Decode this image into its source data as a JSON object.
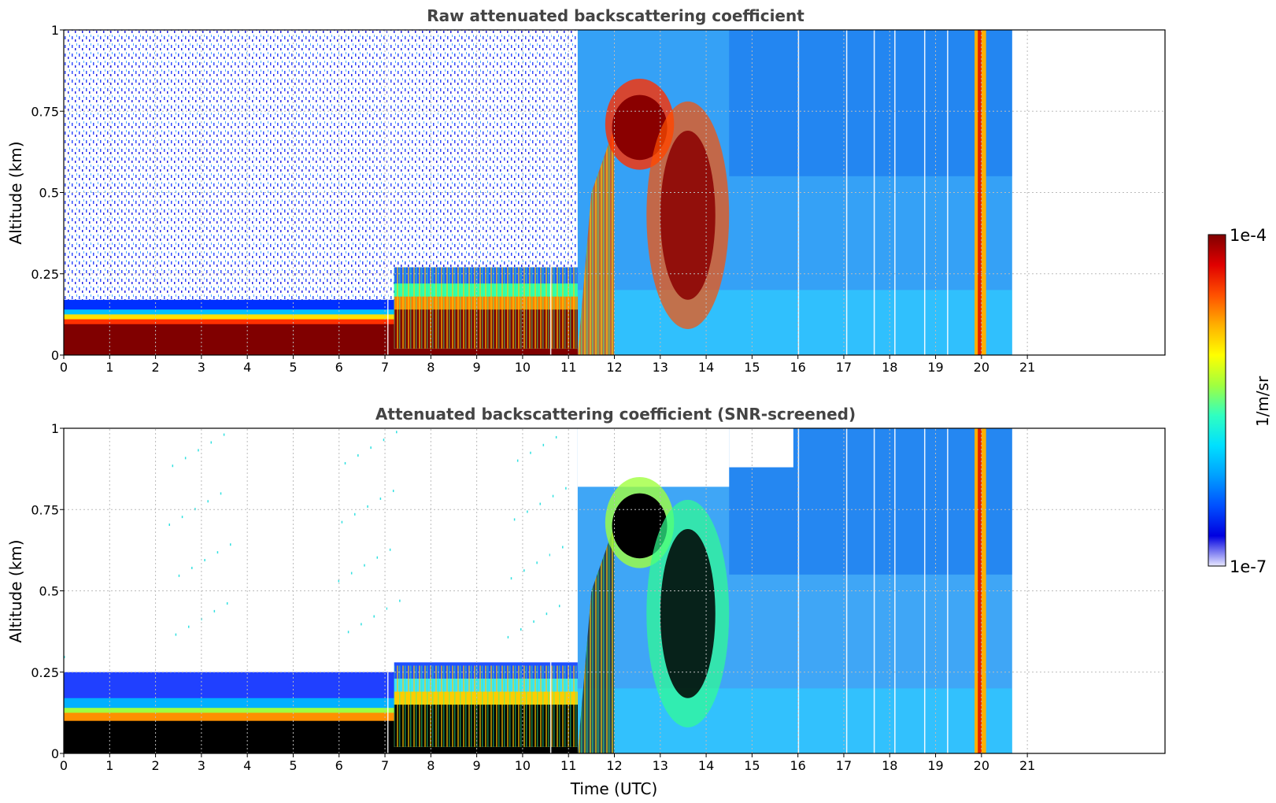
{
  "chart_data": [
    {
      "type": "heatmap",
      "title": "Raw attenuated backscattering coefficient",
      "xlabel": "",
      "ylabel": "Altitude (km)",
      "xlim": [
        0,
        24
      ],
      "ylim": [
        0,
        1
      ],
      "x_ticks": [
        "0",
        "1",
        "2",
        "3",
        "4",
        "5",
        "6",
        "7",
        "8",
        "9",
        "10",
        "11",
        "12",
        "13",
        "14",
        "15",
        "16",
        "17",
        "18",
        "19",
        "20",
        "21"
      ],
      "y_ticks": [
        "0",
        "0.25",
        "0.5",
        "0.75",
        "1"
      ],
      "grid": true,
      "data_end_time": 20.67,
      "features": [
        {
          "region": "surface aerosol layer",
          "time": [
            0,
            11.2
          ],
          "altitude_top": 0.15,
          "level": "high"
        },
        {
          "region": "elevated layer",
          "time": [
            7.2,
            11.2
          ],
          "altitude_top": 0.27,
          "level": "high"
        },
        {
          "region": "cloud",
          "time": [
            11.8,
            13.3
          ],
          "altitude": [
            0.65,
            0.8
          ],
          "level": "saturated"
        },
        {
          "region": "cloud",
          "time": [
            12.8,
            14.5
          ],
          "altitude": [
            0.25,
            0.6
          ],
          "level": "high"
        },
        {
          "region": "rain",
          "time": [
            19.85,
            20.1
          ],
          "altitude": [
            0,
            1
          ],
          "level": "high"
        },
        {
          "region": "background",
          "time": [
            14.5,
            20.67
          ],
          "altitude": [
            0,
            1
          ],
          "level": "low"
        }
      ]
    },
    {
      "type": "heatmap",
      "title": "Attenuated backscattering coefficient (SNR-screened)",
      "xlabel": "Time (UTC)",
      "ylabel": "Altitude (km)",
      "xlim": [
        0,
        24
      ],
      "ylim": [
        0,
        1
      ],
      "x_ticks": [
        "0",
        "1",
        "2",
        "3",
        "4",
        "5",
        "6",
        "7",
        "8",
        "9",
        "10",
        "11",
        "12",
        "13",
        "14",
        "15",
        "16",
        "17",
        "18",
        "19",
        "20",
        "21"
      ],
      "y_ticks": [
        "0",
        "0.25",
        "0.5",
        "0.75",
        "1"
      ],
      "grid": true,
      "data_end_time": 20.67,
      "features": [
        {
          "region": "surface aerosol layer (screened black)",
          "time": [
            0,
            11.2
          ],
          "altitude_top": 0.22,
          "level": "screened"
        },
        {
          "region": "cloud (screened black)",
          "time": [
            11.8,
            13.3
          ],
          "altitude": [
            0.6,
            0.78
          ],
          "level": "screened"
        },
        {
          "region": "background",
          "time": [
            14.5,
            20.67
          ],
          "altitude": [
            0,
            1
          ],
          "level": "low"
        }
      ]
    }
  ],
  "colorbar": {
    "max_label": "1e-4",
    "min_label": "1e-7",
    "unit_label": "1/m/sr",
    "colors": [
      "#e8e8ff",
      "#0000e0",
      "#0050ff",
      "#00a0ff",
      "#00e0ff",
      "#30ffc0",
      "#a0ff40",
      "#ffff00",
      "#ffb000",
      "#ff5000",
      "#e00000",
      "#800000"
    ]
  }
}
